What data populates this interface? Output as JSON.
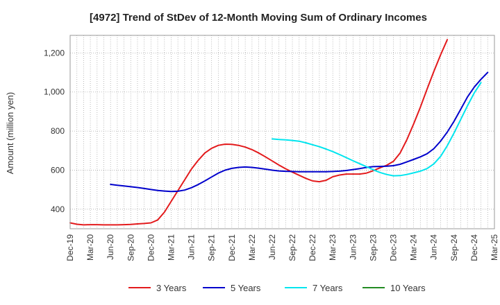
{
  "chart_data": {
    "type": "line",
    "title": "[4972]  Trend of StDev of 12-Month Moving Sum of Ordinary Incomes",
    "xlabel": "",
    "ylabel": "Amount (million yen)",
    "ylim": [
      300,
      1290
    ],
    "y_ticks": [
      400,
      600,
      800,
      1000,
      1200
    ],
    "y_tick_labels": [
      "400",
      "600",
      "800",
      "1,000",
      "1,200"
    ],
    "x_tick_labels": [
      "Dec-19",
      "Mar-20",
      "Jun-20",
      "Sep-20",
      "Dec-20",
      "Mar-21",
      "Jun-21",
      "Sep-21",
      "Dec-21",
      "Mar-22",
      "Jun-22",
      "Sep-22",
      "Dec-22",
      "Mar-23",
      "Jun-23",
      "Sep-23",
      "Dec-23",
      "Mar-24",
      "Jun-24",
      "Sep-24",
      "Dec-24",
      "Mar-25"
    ],
    "grid": true,
    "legend_position": "bottom",
    "series": [
      {
        "name": "3 Years",
        "color": "#e31a1c",
        "start_index": 0,
        "values": [
          330,
          323,
          320,
          321,
          321,
          320,
          320,
          320,
          321,
          322,
          325,
          327,
          330,
          345,
          385,
          440,
          495,
          550,
          605,
          650,
          688,
          712,
          727,
          733,
          732,
          727,
          718,
          705,
          688,
          668,
          647,
          626,
          607,
          590,
          574,
          558,
          545,
          541,
          548,
          566,
          575,
          580,
          580,
          580,
          585,
          597,
          612,
          625,
          645,
          688,
          756,
          836,
          922,
          1015,
          1105,
          1190,
          1268
        ]
      },
      {
        "name": "5 Years",
        "color": "#0000cc",
        "start_index": 6,
        "values": [
          527,
          523,
          519,
          515,
          511,
          506,
          501,
          496,
          493,
          491,
          492,
          498,
          510,
          526,
          545,
          565,
          585,
          600,
          609,
          614,
          616,
          614,
          610,
          605,
          600,
          596,
          594,
          593,
          592,
          592,
          592,
          592,
          592,
          593,
          595,
          598,
          603,
          608,
          614,
          618,
          619,
          620,
          623,
          630,
          642,
          655,
          668,
          684,
          710,
          748,
          795,
          850,
          912,
          975,
          1025,
          1065,
          1100
        ]
      },
      {
        "name": "7 Years",
        "color": "#00e5ee",
        "start_index": 30,
        "values": [
          760,
          757,
          755,
          752,
          748,
          740,
          730,
          720,
          708,
          695,
          680,
          664,
          648,
          633,
          618,
          602,
          588,
          578,
          571,
          572,
          578,
          586,
          595,
          608,
          632,
          670,
          725,
          790,
          860,
          930,
          995,
          1048
        ]
      },
      {
        "name": "10 Years",
        "color": "#228b22",
        "start_index": 0,
        "values": []
      }
    ]
  }
}
